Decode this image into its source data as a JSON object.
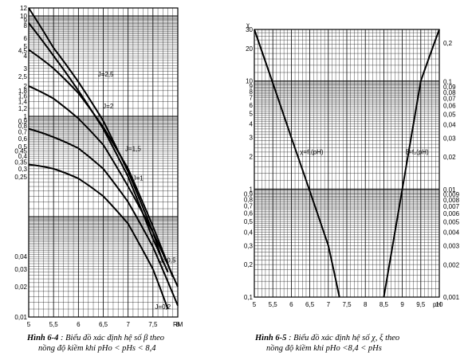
{
  "chart_data": [
    {
      "type": "line",
      "xlabel": "RM",
      "ylabel": "",
      "xlim": [
        5,
        8
      ],
      "ylim": [
        0.01,
        12
      ],
      "y_scale": "log",
      "grid": true,
      "x_ticks": [
        "5",
        "5,5",
        "6",
        "6,5",
        "7",
        "7,5",
        "8"
      ],
      "y_ticks": [
        {
          "v": 12,
          "t": "12"
        },
        {
          "v": 10,
          "t": "10"
        },
        {
          "v": 9,
          "t": "9"
        },
        {
          "v": 8,
          "t": "8"
        },
        {
          "v": 6,
          "t": "6"
        },
        {
          "v": 5,
          "t": "5"
        },
        {
          "v": 4.5,
          "t": "4,5"
        },
        {
          "v": 4,
          "t": "4"
        },
        {
          "v": 3,
          "t": "3"
        },
        {
          "v": 2.5,
          "t": "2,5"
        },
        {
          "v": 2,
          "t": "2"
        },
        {
          "v": 1.8,
          "t": "1,8"
        },
        {
          "v": 1.6,
          "t": "1,6"
        },
        {
          "v": 1.4,
          "t": "1,4"
        },
        {
          "v": 1.2,
          "t": "1,2"
        },
        {
          "v": 1,
          "t": "1"
        },
        {
          "v": 0.9,
          "t": "0,9"
        },
        {
          "v": 0.8,
          "t": "0,8"
        },
        {
          "v": 0.7,
          "t": "0,7"
        },
        {
          "v": 0.6,
          "t": "0,6"
        },
        {
          "v": 0.5,
          "t": "0,5"
        },
        {
          "v": 0.45,
          "t": "0,45"
        },
        {
          "v": 0.4,
          "t": "0,4"
        },
        {
          "v": 0.35,
          "t": "0,35"
        },
        {
          "v": 0.3,
          "t": "0,3"
        },
        {
          "v": 0.25,
          "t": "0,25"
        },
        {
          "v": 0.04,
          "t": "0,04"
        },
        {
          "v": 0.03,
          "t": "0,03"
        },
        {
          "v": 0.02,
          "t": "0,02"
        },
        {
          "v": 0.01,
          "t": "0,01"
        }
      ],
      "series": [
        {
          "name": "J=2,5",
          "x": [
            5.0,
            5.5,
            6.0,
            6.5,
            7.0,
            7.5,
            7.7
          ],
          "y": [
            12,
            4.8,
            2.2,
            0.9,
            0.28,
            0.07,
            0.035
          ]
        },
        {
          "name": "J=2",
          "x": [
            5.0,
            5.5,
            6.0,
            6.5,
            7.0,
            7.5,
            7.8
          ],
          "y": [
            8.5,
            4.0,
            1.8,
            0.75,
            0.25,
            0.06,
            0.028
          ]
        },
        {
          "name": "J=1,5",
          "x": [
            5.0,
            5.5,
            6.0,
            6.5,
            7.0,
            7.5,
            7.9
          ],
          "y": [
            4.6,
            3.0,
            1.7,
            0.78,
            0.3,
            0.08,
            0.025
          ]
        },
        {
          "name": "J=1",
          "x": [
            5.0,
            5.5,
            6.0,
            6.5,
            7.0,
            7.5,
            8.0
          ],
          "y": [
            2.0,
            1.5,
            0.95,
            0.52,
            0.2,
            0.07,
            0.02
          ]
        },
        {
          "name": "J=0,5",
          "x": [
            5.0,
            5.5,
            6.0,
            6.5,
            7.0,
            7.5,
            8.0
          ],
          "y": [
            0.75,
            0.62,
            0.48,
            0.3,
            0.14,
            0.05,
            0.013
          ]
        },
        {
          "name": "J=0,2",
          "x": [
            5.0,
            5.5,
            6.0,
            6.5,
            7.0,
            7.5,
            7.8
          ],
          "y": [
            0.33,
            0.3,
            0.24,
            0.16,
            0.085,
            0.03,
            0.012
          ]
        }
      ]
    },
    {
      "type": "line",
      "xlabel": "pH",
      "ylabel": "χ",
      "xlim": [
        5,
        10
      ],
      "ylim": [
        0.1,
        30
      ],
      "y_scale": "log",
      "grid": true,
      "x_ticks": [
        "5",
        "5,5",
        "6",
        "6,5",
        "7",
        "7,5",
        "8",
        "8,5",
        "9",
        "9,5",
        "10"
      ],
      "y_ticks": [
        {
          "v": 30,
          "t": "30"
        },
        {
          "v": 20,
          "t": "20"
        },
        {
          "v": 10,
          "t": "10"
        },
        {
          "v": 9,
          "t": "9"
        },
        {
          "v": 8,
          "t": "8"
        },
        {
          "v": 7,
          "t": "7"
        },
        {
          "v": 6,
          "t": "6"
        },
        {
          "v": 5,
          "t": "5"
        },
        {
          "v": 4,
          "t": "4"
        },
        {
          "v": 3,
          "t": "3"
        },
        {
          "v": 2,
          "t": "2"
        },
        {
          "v": 1,
          "t": "1"
        },
        {
          "v": 0.9,
          "t": "0,9"
        },
        {
          "v": 0.8,
          "t": "0,8"
        },
        {
          "v": 0.7,
          "t": "0,7"
        },
        {
          "v": 0.6,
          "t": "0,6"
        },
        {
          "v": 0.5,
          "t": "0,5"
        },
        {
          "v": 0.4,
          "t": "0,4"
        },
        {
          "v": 0.3,
          "t": "0,3"
        },
        {
          "v": 0.2,
          "t": "0,2"
        },
        {
          "v": 0.1,
          "t": "0,1"
        }
      ],
      "y2_ticks": [
        {
          "v": 0.2,
          "t": "0,2"
        },
        {
          "v": 0.1,
          "t": "0,1"
        },
        {
          "v": 0.09,
          "t": "0,09"
        },
        {
          "v": 0.08,
          "t": "0,08"
        },
        {
          "v": 0.07,
          "t": "0,07"
        },
        {
          "v": 0.06,
          "t": "0,06"
        },
        {
          "v": 0.05,
          "t": "0,05"
        },
        {
          "v": 0.04,
          "t": "0,04"
        },
        {
          "v": 0.03,
          "t": "0,03"
        },
        {
          "v": 0.02,
          "t": "0,02"
        },
        {
          "v": 0.01,
          "t": "0,01"
        },
        {
          "v": 0.009,
          "t": "0,009"
        },
        {
          "v": 0.008,
          "t": "0,008"
        },
        {
          "v": 0.007,
          "t": "0,007"
        },
        {
          "v": 0.006,
          "t": "0,006"
        },
        {
          "v": 0.005,
          "t": "0,005"
        },
        {
          "v": 0.004,
          "t": "0,004"
        },
        {
          "v": 0.003,
          "t": "0,003"
        },
        {
          "v": 0.002,
          "t": "0,002"
        },
        {
          "v": 0.001,
          "t": "0,001"
        }
      ],
      "series": [
        {
          "name": "χ=f₁(pH)",
          "x": [
            5.0,
            6.0,
            7.0,
            7.3
          ],
          "y": [
            30,
            3.0,
            0.3,
            0.1
          ]
        },
        {
          "name": "ξ=f₂(pH)",
          "x": [
            8.5,
            9.0,
            9.5,
            10.0
          ],
          "y": [
            0.1,
            1.0,
            10,
            30
          ]
        }
      ]
    }
  ],
  "captions": {
    "left_fig": "Hình 6-4",
    "left_line1": " : Biểu đồ xác định hệ số β theo",
    "left_line2": "nồng độ kiềm khi pHo < pHs < 8,4",
    "right_fig": "Hình 6-5",
    "right_line1": " : Biểu đồ xác định hệ số χ, ξ theo",
    "right_line2": "nồng độ kiềm khi pHo <8,4 < pHs"
  }
}
